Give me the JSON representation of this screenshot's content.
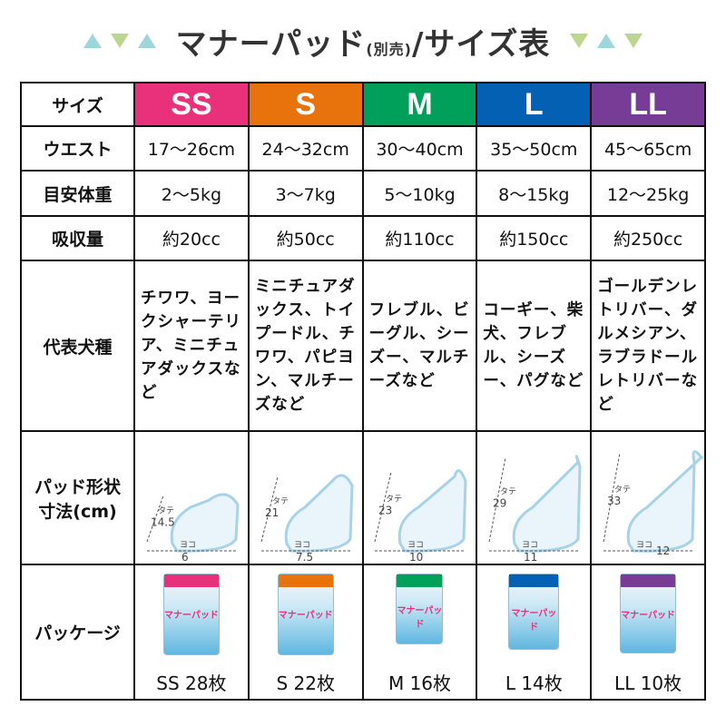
{
  "title": {
    "main": "マナーパッド",
    "sub": "(別売)",
    "tail": "/サイズ表"
  },
  "colors": {
    "SS": "#e8317a",
    "S": "#e8720c",
    "M": "#00a05a",
    "L": "#0460b2",
    "LL": "#763c96"
  },
  "rows": {
    "size": "サイズ",
    "waist": "ウエスト",
    "weight": "目安体重",
    "absorb": "吸収量",
    "breeds": "代表犬種",
    "pad": "パッド形状\n寸法(cm)",
    "package": "パッケージ"
  },
  "sizes": [
    {
      "name": "SS",
      "waist": "17〜26cm",
      "weight": "2〜5kg",
      "absorb": "約20cc",
      "breeds": "チワワ、ヨークシャーテリア、ミニチュアダックスなど",
      "tate_label": "タテ",
      "tate": "14.5",
      "yoko_label": "ヨコ",
      "yoko": "6",
      "package": "SS 28枚",
      "brand": "マナーパッド"
    },
    {
      "name": "S",
      "waist": "24〜32cm",
      "weight": "3〜7kg",
      "absorb": "約50cc",
      "breeds": "ミニチュアダックス、トイプードル、チワワ、パピヨン、マルチーズなど",
      "tate_label": "タテ",
      "tate": "21",
      "yoko_label": "ヨコ",
      "yoko": "7.5",
      "package": "S 22枚",
      "brand": "マナーパッド"
    },
    {
      "name": "M",
      "waist": "30〜40cm",
      "weight": "5〜10kg",
      "absorb": "約110cc",
      "breeds": "フレブル、ビーグル、シーズー、マルチーズなど",
      "tate_label": "タテ",
      "tate": "23",
      "yoko_label": "ヨコ",
      "yoko": "10",
      "package": "M 16枚",
      "brand": "マナーパッド"
    },
    {
      "name": "L",
      "waist": "35〜50cm",
      "weight": "8〜15kg",
      "absorb": "約150cc",
      "breeds": "コーギー、柴犬、フレブル、シーズー、パグなど",
      "tate_label": "タテ",
      "tate": "29",
      "yoko_label": "ヨコ",
      "yoko": "11",
      "package": "L 14枚",
      "brand": "マナーパッド"
    },
    {
      "name": "LL",
      "waist": "45〜65cm",
      "weight": "12〜25kg",
      "absorb": "約250cc",
      "breeds": "ゴールデンレトリバー、ダルメシアン、ラブラドールレトリバーなど",
      "tate_label": "タテ",
      "tate": "33",
      "yoko_label": "ヨコ",
      "yoko": "12",
      "package": "LL 10枚",
      "brand": "マナーパッド"
    }
  ]
}
